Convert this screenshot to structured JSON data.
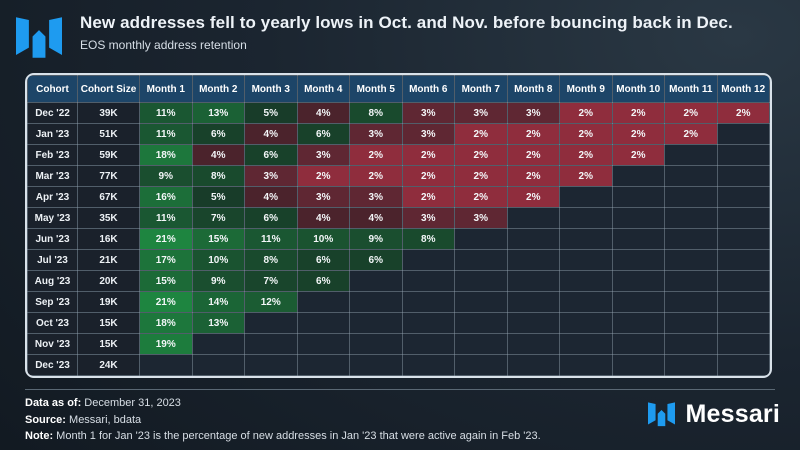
{
  "header": {
    "title": "New addresses fell to yearly lows in Oct. and Nov. before bouncing back in Dec.",
    "subtitle": "EOS monthly address retention",
    "logo_color": "#1e9bf0"
  },
  "table": {
    "columns": [
      "Cohort",
      "Cohort Size",
      "Month 1",
      "Month 2",
      "Month 3",
      "Month 4",
      "Month 5",
      "Month 6",
      "Month 7",
      "Month 8",
      "Month 9",
      "Month 10",
      "Month 11",
      "Month 12"
    ],
    "rows": [
      {
        "cohort": "Dec '22",
        "size": "39K",
        "values": [
          11,
          13,
          5,
          4,
          8,
          3,
          3,
          3,
          2,
          2,
          2,
          2
        ]
      },
      {
        "cohort": "Jan '23",
        "size": "51K",
        "values": [
          11,
          6,
          4,
          6,
          3,
          3,
          2,
          2,
          2,
          2,
          2,
          null
        ]
      },
      {
        "cohort": "Feb '23",
        "size": "59K",
        "values": [
          18,
          4,
          6,
          3,
          2,
          2,
          2,
          2,
          2,
          2,
          null,
          null
        ]
      },
      {
        "cohort": "Mar '23",
        "size": "77K",
        "values": [
          9,
          8,
          3,
          2,
          2,
          2,
          2,
          2,
          2,
          null,
          null,
          null
        ]
      },
      {
        "cohort": "Apr '23",
        "size": "67K",
        "values": [
          16,
          5,
          4,
          3,
          3,
          2,
          2,
          2,
          null,
          null,
          null,
          null
        ]
      },
      {
        "cohort": "May '23",
        "size": "35K",
        "values": [
          11,
          7,
          6,
          4,
          4,
          3,
          3,
          null,
          null,
          null,
          null,
          null
        ]
      },
      {
        "cohort": "Jun '23",
        "size": "16K",
        "values": [
          21,
          15,
          11,
          10,
          9,
          8,
          null,
          null,
          null,
          null,
          null,
          null
        ]
      },
      {
        "cohort": "Jul '23",
        "size": "21K",
        "values": [
          17,
          10,
          8,
          6,
          6,
          null,
          null,
          null,
          null,
          null,
          null,
          null
        ]
      },
      {
        "cohort": "Aug '23",
        "size": "20K",
        "values": [
          15,
          9,
          7,
          6,
          null,
          null,
          null,
          null,
          null,
          null,
          null,
          null
        ]
      },
      {
        "cohort": "Sep '23",
        "size": "19K",
        "values": [
          21,
          14,
          12,
          null,
          null,
          null,
          null,
          null,
          null,
          null,
          null,
          null
        ]
      },
      {
        "cohort": "Oct '23",
        "size": "15K",
        "values": [
          18,
          13,
          null,
          null,
          null,
          null,
          null,
          null,
          null,
          null,
          null,
          null
        ]
      },
      {
        "cohort": "Nov '23",
        "size": "15K",
        "values": [
          19,
          null,
          null,
          null,
          null,
          null,
          null,
          null,
          null,
          null,
          null,
          null
        ]
      },
      {
        "cohort": "Dec '23",
        "size": "24K",
        "values": [
          null,
          null,
          null,
          null,
          null,
          null,
          null,
          null,
          null,
          null,
          null,
          null
        ]
      }
    ],
    "unit": "%"
  },
  "chart_data": {
    "type": "heatmap",
    "title": "New addresses fell to yearly lows in Oct. and Nov. before bouncing back in Dec.",
    "subtitle": "EOS monthly address retention",
    "x_labels": [
      "Month 1",
      "Month 2",
      "Month 3",
      "Month 4",
      "Month 5",
      "Month 6",
      "Month 7",
      "Month 8",
      "Month 9",
      "Month 10",
      "Month 11",
      "Month 12"
    ],
    "y_labels": [
      "Dec '22",
      "Jan '23",
      "Feb '23",
      "Mar '23",
      "Apr '23",
      "May '23",
      "Jun '23",
      "Jul '23",
      "Aug '23",
      "Sep '23",
      "Oct '23",
      "Nov '23",
      "Dec '23"
    ],
    "cohort_sizes": [
      "39K",
      "51K",
      "59K",
      "77K",
      "67K",
      "35K",
      "16K",
      "21K",
      "20K",
      "19K",
      "15K",
      "15K",
      "24K"
    ],
    "values_pct": [
      [
        11,
        13,
        5,
        4,
        8,
        3,
        3,
        3,
        2,
        2,
        2,
        2
      ],
      [
        11,
        6,
        4,
        6,
        3,
        3,
        2,
        2,
        2,
        2,
        2,
        null
      ],
      [
        18,
        4,
        6,
        3,
        2,
        2,
        2,
        2,
        2,
        2,
        null,
        null
      ],
      [
        9,
        8,
        3,
        2,
        2,
        2,
        2,
        2,
        2,
        null,
        null,
        null
      ],
      [
        16,
        5,
        4,
        3,
        3,
        2,
        2,
        2,
        null,
        null,
        null,
        null
      ],
      [
        11,
        7,
        6,
        4,
        4,
        3,
        3,
        null,
        null,
        null,
        null,
        null
      ],
      [
        21,
        15,
        11,
        10,
        9,
        8,
        null,
        null,
        null,
        null,
        null,
        null
      ],
      [
        17,
        10,
        8,
        6,
        6,
        null,
        null,
        null,
        null,
        null,
        null,
        null
      ],
      [
        15,
        9,
        7,
        6,
        null,
        null,
        null,
        null,
        null,
        null,
        null,
        null
      ],
      [
        21,
        14,
        12,
        null,
        null,
        null,
        null,
        null,
        null,
        null,
        null,
        null
      ],
      [
        18,
        13,
        null,
        null,
        null,
        null,
        null,
        null,
        null,
        null,
        null,
        null
      ],
      [
        19,
        null,
        null,
        null,
        null,
        null,
        null,
        null,
        null,
        null,
        null,
        null
      ],
      [
        null,
        null,
        null,
        null,
        null,
        null,
        null,
        null,
        null,
        null,
        null,
        null
      ]
    ],
    "legend_position": "none",
    "grid": true
  },
  "colors": {
    "accent_blue": "#1e9bf0",
    "header_bg": "#1d4568",
    "label_bg": "#1a212b",
    "empty_bg": "#1c2632",
    "green_min": "#183c29",
    "green_max": "#1e8540",
    "green_domain": [
      5,
      21
    ],
    "red": {
      "2": "#8f2d3d",
      "3": "#5f2733",
      "4": "#4b232c"
    }
  },
  "footer": {
    "data_as_of_label": "Data as of:",
    "data_as_of_value": " December 31, 2023",
    "source_label": "Source:",
    "source_value": " Messari, bdata",
    "note_label": "Note:",
    "note_value": " Month 1 for Jan '23 is the percentage of new addresses in Jan '23 that were active again in Feb '23.",
    "brand": "Messari"
  }
}
